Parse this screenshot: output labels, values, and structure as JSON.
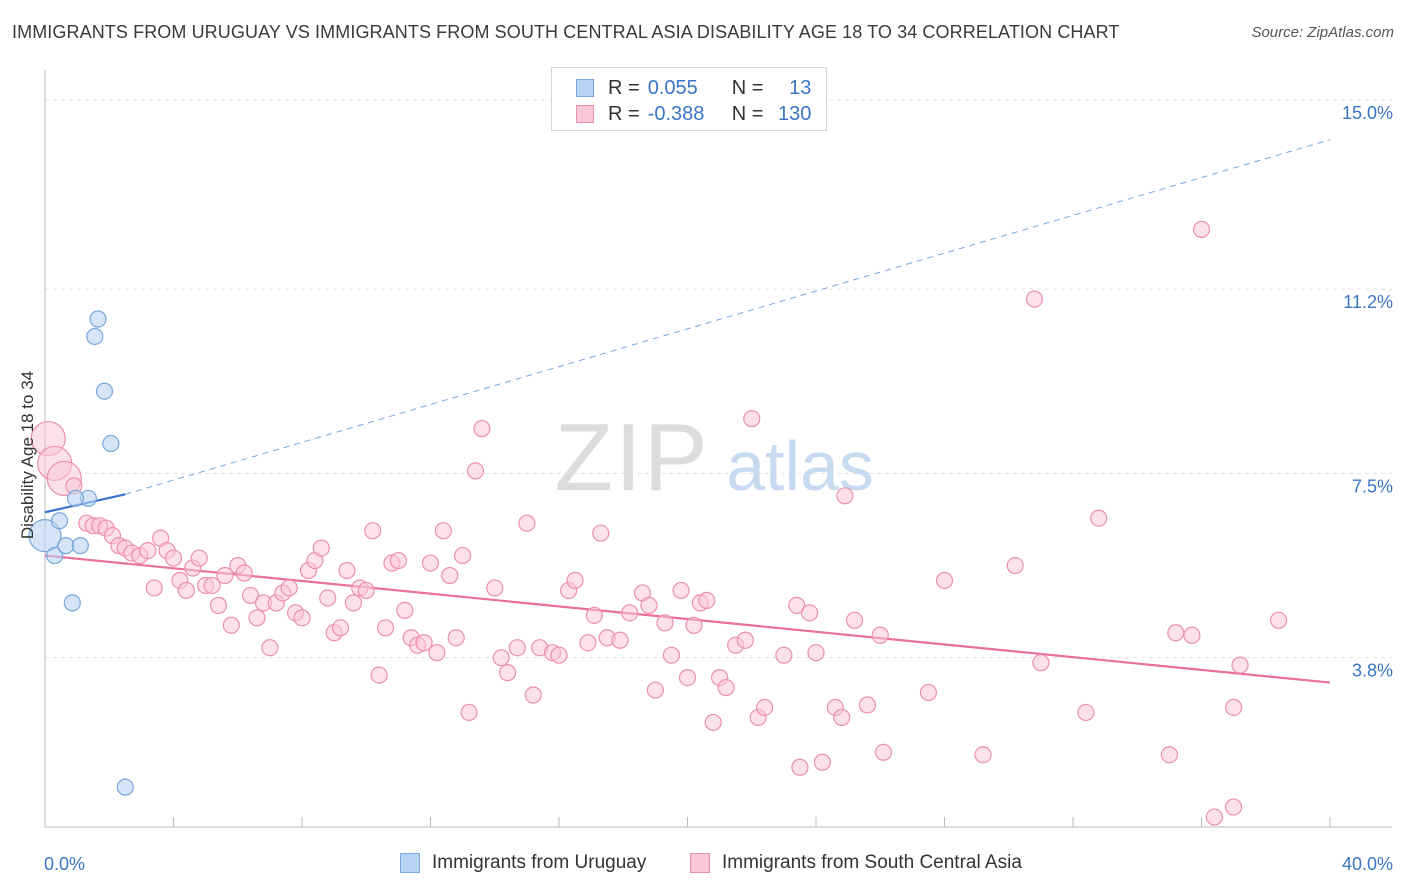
{
  "header": {
    "title": "IMMIGRANTS FROM URUGUAY VS IMMIGRANTS FROM SOUTH CENTRAL ASIA DISABILITY AGE 18 TO 34 CORRELATION CHART",
    "source": "Source: ZipAtlas.com"
  },
  "watermark": {
    "zip": "ZIP",
    "atlas": "atlas"
  },
  "legend": {
    "r_label": "R =",
    "n_label": "N =",
    "rows": [
      {
        "r": "0.055",
        "n": "13",
        "fill": "#b9d3f2",
        "stroke": "#7aa6dc"
      },
      {
        "r": "-0.388",
        "n": "130",
        "fill": "#f9c8d6",
        "stroke": "#ec8fae"
      }
    ]
  },
  "bottom_legend": {
    "items": [
      {
        "label": "Immigrants from Uruguay"
      },
      {
        "label": "Immigrants from South Central Asia"
      }
    ]
  },
  "colors": {
    "blue_fill": "#b9d3f2",
    "blue_stroke": "#7aa6dc",
    "blue_line": "#3a76d0",
    "pink_fill": "#f9c8d6",
    "pink_stroke": "#ec8fae",
    "pink_line": "#e8709a",
    "axis_label": "#3a76c4",
    "grid": "#e2e2e2"
  },
  "chart_data": {
    "type": "scatter",
    "title": "IMMIGRANTS FROM URUGUAY VS IMMIGRANTS FROM SOUTH CENTRAL ASIA DISABILITY AGE 18 TO 34 CORRELATION CHART",
    "xlabel": "",
    "ylabel": "Disability Age 18 to 34",
    "xlim": [
      0,
      40
    ],
    "ylim": [
      0.4,
      15.6
    ],
    "x_tick_labels": [
      "0.0%",
      "40.0%"
    ],
    "y_ticks": [
      3.8,
      7.5,
      11.2,
      15.0
    ],
    "y_tick_labels": [
      "3.8%",
      "7.5%",
      "11.2%",
      "15.0%"
    ],
    "grid": true,
    "legend_position": "top-center",
    "series": [
      {
        "name": "Immigrants from Uruguay",
        "r": 0.055,
        "n": 13,
        "trend": {
          "x0": 0,
          "y0": 6.72,
          "x1": 2.5,
          "y1": 7.08,
          "extended_x1": 40,
          "extended_y1": 14.2
        },
        "points": [
          {
            "x": 0.0,
            "y": 6.25,
            "big": true
          },
          {
            "x": 0.3,
            "y": 5.85
          },
          {
            "x": 0.45,
            "y": 6.55
          },
          {
            "x": 0.65,
            "y": 6.05
          },
          {
            "x": 0.85,
            "y": 4.9
          },
          {
            "x": 1.1,
            "y": 6.05
          },
          {
            "x": 1.35,
            "y": 7.0
          },
          {
            "x": 1.55,
            "y": 10.25
          },
          {
            "x": 1.65,
            "y": 10.6
          },
          {
            "x": 1.85,
            "y": 9.15
          },
          {
            "x": 2.05,
            "y": 8.1
          },
          {
            "x": 2.5,
            "y": 1.2
          },
          {
            "x": 0.95,
            "y": 7.0
          }
        ]
      },
      {
        "name": "Immigrants from South Central Asia",
        "r": -0.388,
        "n": 130,
        "trend": {
          "x0": 0,
          "y0": 5.85,
          "x1": 40,
          "y1": 3.3
        },
        "points": [
          {
            "x": 0.1,
            "y": 8.2,
            "big": true
          },
          {
            "x": 0.3,
            "y": 7.7,
            "big": true
          },
          {
            "x": 0.6,
            "y": 7.4,
            "big": true
          },
          {
            "x": 0.9,
            "y": 7.25
          },
          {
            "x": 1.3,
            "y": 6.5
          },
          {
            "x": 1.5,
            "y": 6.45
          },
          {
            "x": 1.7,
            "y": 6.45
          },
          {
            "x": 1.9,
            "y": 6.4
          },
          {
            "x": 2.1,
            "y": 6.25
          },
          {
            "x": 2.3,
            "y": 6.05
          },
          {
            "x": 2.5,
            "y": 6.0
          },
          {
            "x": 2.7,
            "y": 5.9
          },
          {
            "x": 2.95,
            "y": 5.85
          },
          {
            "x": 3.2,
            "y": 5.95
          },
          {
            "x": 3.4,
            "y": 5.2
          },
          {
            "x": 3.6,
            "y": 6.2
          },
          {
            "x": 3.8,
            "y": 5.95
          },
          {
            "x": 4.0,
            "y": 5.8
          },
          {
            "x": 4.2,
            "y": 5.35
          },
          {
            "x": 4.4,
            "y": 5.15
          },
          {
            "x": 4.6,
            "y": 5.6
          },
          {
            "x": 4.8,
            "y": 5.8
          },
          {
            "x": 5.0,
            "y": 5.25
          },
          {
            "x": 5.2,
            "y": 5.25
          },
          {
            "x": 5.4,
            "y": 4.85
          },
          {
            "x": 5.6,
            "y": 5.45
          },
          {
            "x": 5.8,
            "y": 4.45
          },
          {
            "x": 6.0,
            "y": 5.65
          },
          {
            "x": 6.2,
            "y": 5.5
          },
          {
            "x": 6.4,
            "y": 5.05
          },
          {
            "x": 6.6,
            "y": 4.6
          },
          {
            "x": 6.8,
            "y": 4.9
          },
          {
            "x": 7.0,
            "y": 4.0
          },
          {
            "x": 7.2,
            "y": 4.9
          },
          {
            "x": 7.4,
            "y": 5.1
          },
          {
            "x": 7.6,
            "y": 5.2
          },
          {
            "x": 7.8,
            "y": 4.7
          },
          {
            "x": 8.0,
            "y": 4.6
          },
          {
            "x": 8.2,
            "y": 5.55
          },
          {
            "x": 8.4,
            "y": 5.75
          },
          {
            "x": 8.6,
            "y": 6.0
          },
          {
            "x": 8.8,
            "y": 5.0
          },
          {
            "x": 9.0,
            "y": 4.3
          },
          {
            "x": 9.2,
            "y": 4.4
          },
          {
            "x": 9.4,
            "y": 5.55
          },
          {
            "x": 9.6,
            "y": 4.9
          },
          {
            "x": 9.8,
            "y": 5.2
          },
          {
            "x": 10.0,
            "y": 5.15
          },
          {
            "x": 10.2,
            "y": 6.35
          },
          {
            "x": 10.4,
            "y": 3.45
          },
          {
            "x": 10.6,
            "y": 4.4
          },
          {
            "x": 10.8,
            "y": 5.7
          },
          {
            "x": 11.0,
            "y": 5.75
          },
          {
            "x": 11.2,
            "y": 4.75
          },
          {
            "x": 11.4,
            "y": 4.2
          },
          {
            "x": 11.6,
            "y": 4.05
          },
          {
            "x": 11.8,
            "y": 4.1
          },
          {
            "x": 12.0,
            "y": 5.7
          },
          {
            "x": 12.2,
            "y": 3.9
          },
          {
            "x": 12.4,
            "y": 6.35
          },
          {
            "x": 12.6,
            "y": 5.45
          },
          {
            "x": 12.8,
            "y": 4.2
          },
          {
            "x": 13.0,
            "y": 5.85
          },
          {
            "x": 13.2,
            "y": 2.7
          },
          {
            "x": 13.4,
            "y": 7.55
          },
          {
            "x": 13.6,
            "y": 8.4
          },
          {
            "x": 14.0,
            "y": 5.2
          },
          {
            "x": 14.2,
            "y": 3.8
          },
          {
            "x": 14.4,
            "y": 3.5
          },
          {
            "x": 14.7,
            "y": 4.0
          },
          {
            "x": 15.0,
            "y": 6.5
          },
          {
            "x": 15.2,
            "y": 3.05
          },
          {
            "x": 15.4,
            "y": 4.0
          },
          {
            "x": 15.8,
            "y": 3.9
          },
          {
            "x": 16.0,
            "y": 3.85
          },
          {
            "x": 16.3,
            "y": 5.15
          },
          {
            "x": 16.5,
            "y": 5.35
          },
          {
            "x": 16.9,
            "y": 4.1
          },
          {
            "x": 17.1,
            "y": 4.65
          },
          {
            "x": 17.3,
            "y": 6.3
          },
          {
            "x": 17.5,
            "y": 4.2
          },
          {
            "x": 17.9,
            "y": 4.15
          },
          {
            "x": 18.2,
            "y": 4.7
          },
          {
            "x": 18.6,
            "y": 5.1
          },
          {
            "x": 18.8,
            "y": 4.85
          },
          {
            "x": 19.0,
            "y": 3.15
          },
          {
            "x": 19.3,
            "y": 4.5
          },
          {
            "x": 19.5,
            "y": 3.85
          },
          {
            "x": 19.8,
            "y": 5.15
          },
          {
            "x": 20.0,
            "y": 3.4
          },
          {
            "x": 20.2,
            "y": 4.45
          },
          {
            "x": 20.4,
            "y": 4.9
          },
          {
            "x": 20.6,
            "y": 4.95
          },
          {
            "x": 20.8,
            "y": 2.5
          },
          {
            "x": 21.0,
            "y": 3.4
          },
          {
            "x": 21.2,
            "y": 3.2
          },
          {
            "x": 21.5,
            "y": 4.05
          },
          {
            "x": 21.8,
            "y": 4.15
          },
          {
            "x": 22.0,
            "y": 8.6
          },
          {
            "x": 22.2,
            "y": 2.6
          },
          {
            "x": 22.4,
            "y": 2.8
          },
          {
            "x": 23.0,
            "y": 3.85
          },
          {
            "x": 23.4,
            "y": 4.85
          },
          {
            "x": 23.5,
            "y": 1.6
          },
          {
            "x": 23.8,
            "y": 4.7
          },
          {
            "x": 24.0,
            "y": 3.9
          },
          {
            "x": 24.2,
            "y": 1.7
          },
          {
            "x": 24.6,
            "y": 2.8
          },
          {
            "x": 24.8,
            "y": 2.6
          },
          {
            "x": 24.9,
            "y": 7.05
          },
          {
            "x": 25.2,
            "y": 4.55
          },
          {
            "x": 25.6,
            "y": 2.85
          },
          {
            "x": 26.0,
            "y": 4.25
          },
          {
            "x": 26.1,
            "y": 1.9
          },
          {
            "x": 27.5,
            "y": 3.1
          },
          {
            "x": 28.0,
            "y": 5.35
          },
          {
            "x": 29.2,
            "y": 1.85
          },
          {
            "x": 30.2,
            "y": 5.65
          },
          {
            "x": 30.8,
            "y": 11.0
          },
          {
            "x": 31.0,
            "y": 3.7
          },
          {
            "x": 32.4,
            "y": 2.7
          },
          {
            "x": 32.8,
            "y": 6.6
          },
          {
            "x": 35.0,
            "y": 1.85
          },
          {
            "x": 35.2,
            "y": 4.3
          },
          {
            "x": 35.7,
            "y": 4.25
          },
          {
            "x": 36.0,
            "y": 12.4
          },
          {
            "x": 36.4,
            "y": 0.6
          },
          {
            "x": 37.0,
            "y": 0.8
          },
          {
            "x": 37.0,
            "y": 2.8
          },
          {
            "x": 37.2,
            "y": 3.65
          },
          {
            "x": 38.4,
            "y": 4.55
          }
        ]
      }
    ]
  }
}
